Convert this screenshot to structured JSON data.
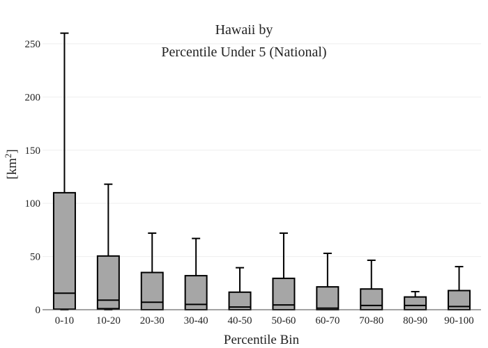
{
  "chart_data": {
    "type": "box",
    "title_lines": [
      "Hawaii  by",
      "Percentile Under 5 (National)"
    ],
    "xlabel": "Percentile Bin",
    "ylabel": "[km",
    "ylabel_sup": "2",
    "ylabel_close": "]",
    "ylim": [
      0,
      265
    ],
    "yticks": [
      0,
      50,
      100,
      150,
      200,
      250
    ],
    "grid": true,
    "categories": [
      "0-10",
      "10-20",
      "20-30",
      "30-40",
      "40-50",
      "50-60",
      "60-70",
      "70-80",
      "80-90",
      "90-100"
    ],
    "series": [
      {
        "boxes": [
          {
            "min": 0,
            "q1": 0.5,
            "median": 15.5,
            "q3": 110,
            "max": 260
          },
          {
            "min": 0,
            "q1": 1,
            "median": 9,
            "q3": 50.5,
            "max": 118
          },
          {
            "min": 0,
            "q1": 0,
            "median": 7,
            "q3": 35,
            "max": 72
          },
          {
            "min": 0,
            "q1": 0,
            "median": 5,
            "q3": 32,
            "max": 67
          },
          {
            "min": 0,
            "q1": 0,
            "median": 2.5,
            "q3": 16.5,
            "max": 39.5
          },
          {
            "min": 0,
            "q1": 0,
            "median": 4.5,
            "q3": 29.5,
            "max": 72
          },
          {
            "min": 0,
            "q1": 0,
            "median": 1.5,
            "q3": 21.5,
            "max": 53
          },
          {
            "min": 0,
            "q1": 0,
            "median": 4,
            "q3": 19.5,
            "max": 46.5
          },
          {
            "min": 0,
            "q1": 0,
            "median": 4,
            "q3": 12,
            "max": 17
          },
          {
            "min": 0,
            "q1": 0,
            "median": 3,
            "q3": 18,
            "max": 40.5
          }
        ]
      }
    ]
  }
}
